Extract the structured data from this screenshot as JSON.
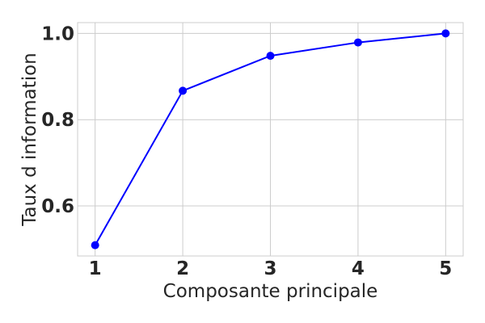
{
  "chart_data": {
    "type": "line",
    "title": "",
    "xlabel": "Composante principale",
    "ylabel": "Taux d information",
    "x": [
      1,
      2,
      3,
      4,
      5
    ],
    "series": [
      {
        "values": [
          0.509,
          0.867,
          0.948,
          0.979,
          1.0
        ],
        "color": "#0000ff",
        "marker": "circle"
      }
    ],
    "xticks": [
      1,
      2,
      3,
      4,
      5
    ],
    "xtick_labels": [
      "1",
      "2",
      "3",
      "4",
      "5"
    ],
    "yticks": [
      0.6,
      0.8,
      1.0
    ],
    "ytick_labels": [
      "0.6",
      "0.8",
      "1.0"
    ],
    "xlim": [
      0.8,
      5.2
    ],
    "ylim": [
      0.484,
      1.025
    ],
    "grid": true,
    "legend": false
  },
  "colors": {
    "background": "#ffffff",
    "grid": "#cccccc",
    "text": "#262626",
    "line": "#0000ff"
  }
}
